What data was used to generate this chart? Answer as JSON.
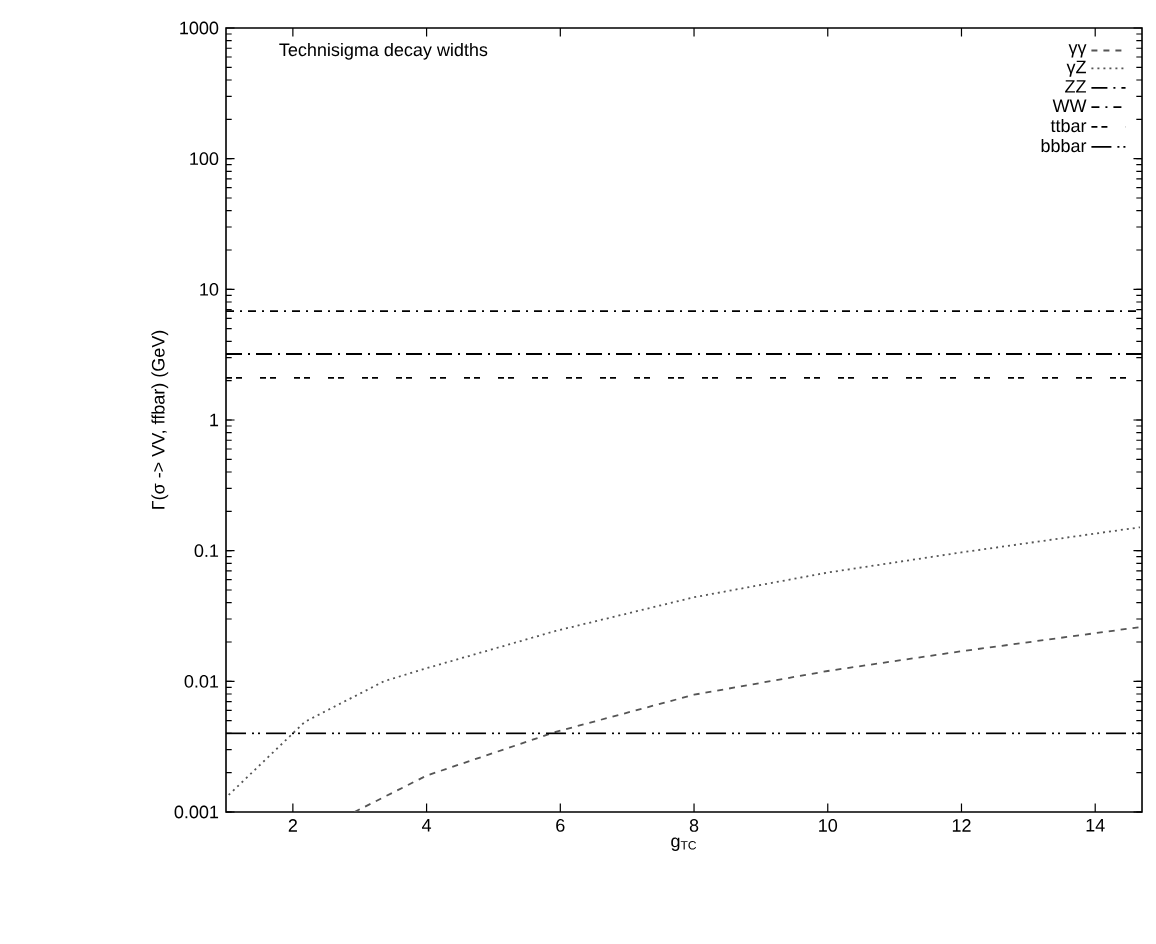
{
  "chart_data": {
    "type": "line",
    "title": "Technisigma decay widths",
    "xlabel": "g$_{TC}$",
    "ylabel": "Γ(σ -> VV, ffbar) (GeV)",
    "log": "y",
    "legend": "top right",
    "xlim": [
      1,
      14.7
    ],
    "ylim": [
      0.001,
      1000
    ],
    "xticks": [
      2,
      4,
      6,
      8,
      10,
      12,
      14
    ],
    "yticks": [
      0.001,
      0.01,
      0.1,
      1,
      10,
      100,
      1000
    ],
    "series": [
      {
        "name": "γγ",
        "color": "#555555",
        "line_style": "dashed",
        "x": [
          2.92,
          4,
          5.93,
          8,
          10,
          12,
          14.67
        ],
        "values": [
          0.001,
          0.0019,
          0.0041,
          0.0079,
          0.012,
          0.017,
          0.026
        ]
      },
      {
        "name": "γZ",
        "color": "#555555",
        "line_style": "dotted",
        "x": [
          1.04,
          2.18,
          3.36,
          4,
          5.93,
          8,
          10,
          12,
          14.67
        ],
        "values": [
          0.00135,
          0.0049,
          0.01,
          0.0126,
          0.0243,
          0.044,
          0.068,
          0.097,
          0.151
        ]
      },
      {
        "name": "ZZ",
        "color": "#000000",
        "line_style": "dashdot",
        "x": [
          1,
          14.7
        ],
        "values": [
          3.2,
          3.2
        ]
      },
      {
        "name": "WW",
        "color": "#000000",
        "line_style": "densely dashdot",
        "x": [
          1,
          14.7
        ],
        "values": [
          6.8,
          6.8
        ]
      },
      {
        "name": "ttbar",
        "color": "#000000",
        "line_style": "loosely dashed",
        "x": [
          1,
          14.7
        ],
        "values": [
          2.1,
          2.1
        ]
      },
      {
        "name": "bbbar",
        "color": "#000000",
        "line_style": "dashdotdot",
        "x": [
          1,
          14.7
        ],
        "values": [
          0.004,
          0.004
        ]
      }
    ]
  }
}
